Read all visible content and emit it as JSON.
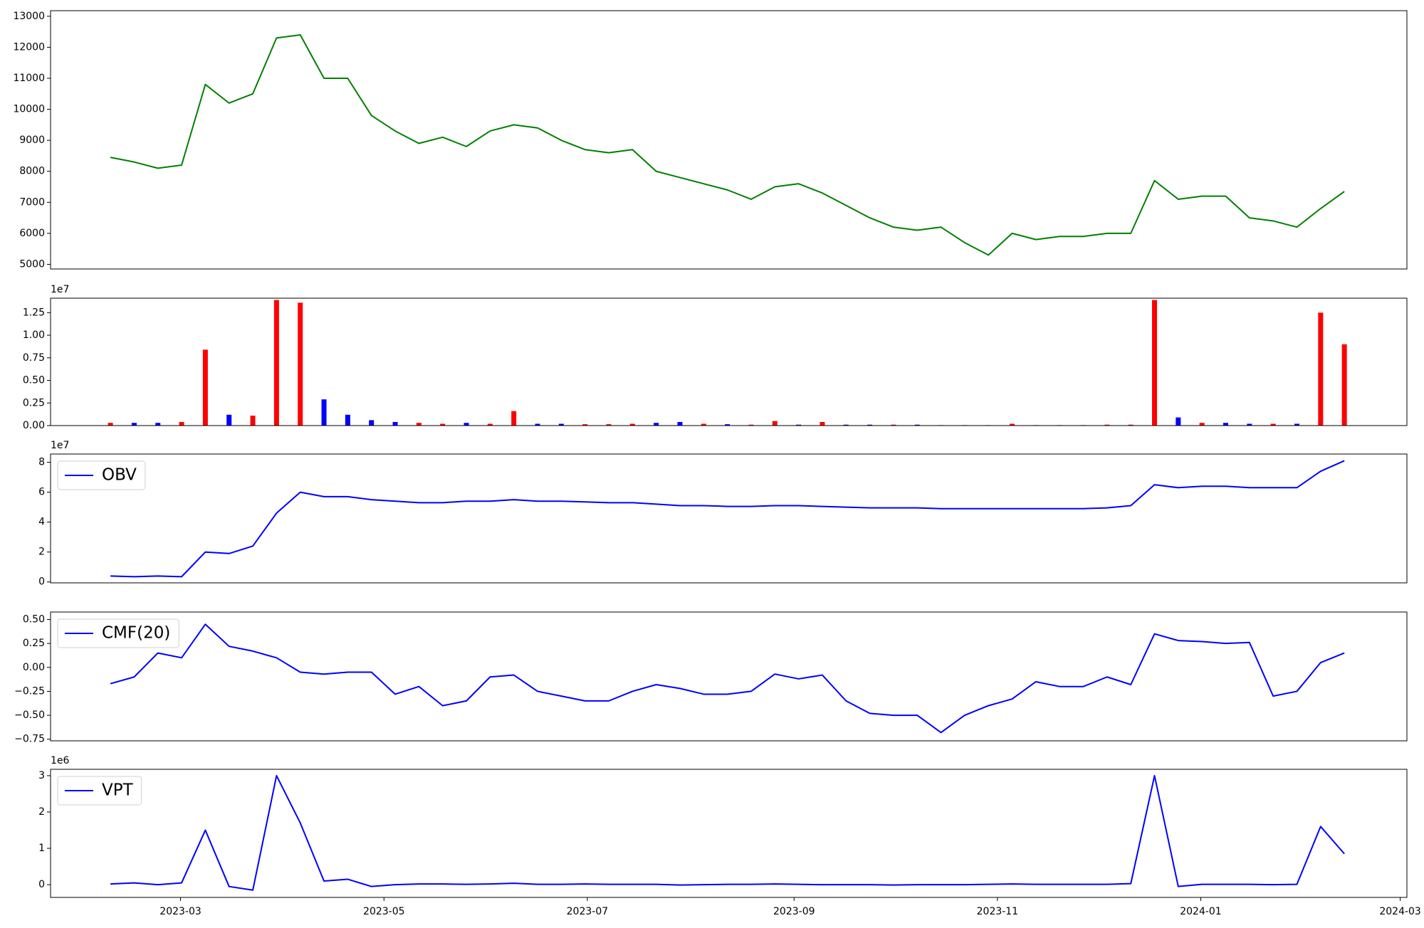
{
  "chart_data": [
    {
      "type": "line",
      "x": [
        2023.104,
        2023.1235,
        2023.143,
        2023.1625,
        2023.182,
        2023.2015,
        2023.221,
        2023.2405,
        2023.26,
        2023.2795,
        2023.299,
        2023.3185,
        2023.338,
        2023.3575,
        2023.377,
        2023.3965,
        2023.416,
        2023.4355,
        2023.455,
        2023.4745,
        2023.494,
        2023.5135,
        2023.533,
        2023.5525,
        2023.572,
        2023.5915,
        2023.611,
        2023.6305,
        2023.65,
        2023.6695,
        2023.689,
        2023.7085,
        2023.728,
        2023.7475,
        2023.767,
        2023.7865,
        2023.806,
        2023.8255,
        2023.845,
        2023.8645,
        2023.884,
        2023.9035,
        2023.923,
        2023.9425,
        2023.962,
        2023.9815,
        2024.001,
        2024.0205,
        2024.04,
        2024.0595,
        2024.079,
        2024.0985,
        2024.118
      ],
      "values": [
        8450,
        8300,
        8100,
        8200,
        10800,
        10200,
        10500,
        12300,
        12400,
        11000,
        11000,
        9800,
        9300,
        8900,
        9100,
        8800,
        9300,
        9500,
        9400,
        9000,
        8700,
        8600,
        8700,
        8000,
        7800,
        7600,
        7400,
        7100,
        7500,
        7600,
        7300,
        6900,
        6500,
        6200,
        6100,
        6200,
        5700,
        5300,
        6000,
        5800,
        5900,
        5900,
        6000,
        6000,
        7700,
        7100,
        7200,
        7200,
        6500,
        6400,
        6200,
        6800,
        7350
      ],
      "color": "#008000",
      "xlim": [
        2023.0548,
        2024.1694
      ],
      "ylim": [
        4850,
        13180
      ],
      "yticks": [
        5000,
        6000,
        7000,
        8000,
        9000,
        10000,
        11000,
        12000,
        13000
      ]
    },
    {
      "type": "bar",
      "x": [
        2023.104,
        2023.1235,
        2023.143,
        2023.1625,
        2023.182,
        2023.2015,
        2023.221,
        2023.2405,
        2023.26,
        2023.2795,
        2023.299,
        2023.3185,
        2023.338,
        2023.3575,
        2023.377,
        2023.3965,
        2023.416,
        2023.4355,
        2023.455,
        2023.4745,
        2023.494,
        2023.5135,
        2023.533,
        2023.5525,
        2023.572,
        2023.5915,
        2023.611,
        2023.6305,
        2023.65,
        2023.6695,
        2023.689,
        2023.7085,
        2023.728,
        2023.7475,
        2023.767,
        2023.7865,
        2023.806,
        2023.8255,
        2023.845,
        2023.8645,
        2023.884,
        2023.9035,
        2023.923,
        2023.9425,
        2023.962,
        2023.9815,
        2024.001,
        2024.0205,
        2024.04,
        2024.0595,
        2024.079,
        2024.0985,
        2024.118
      ],
      "values": [
        300000,
        300000,
        300000,
        400000,
        8400000,
        1200000,
        1100000,
        13900000,
        13600000,
        2900000,
        1200000,
        600000,
        400000,
        300000,
        200000,
        300000,
        200000,
        1600000,
        200000,
        200000,
        150000,
        150000,
        200000,
        300000,
        400000,
        200000,
        150000,
        100000,
        500000,
        100000,
        400000,
        100000,
        100000,
        100000,
        100000,
        50000,
        50000,
        50000,
        200000,
        50000,
        50000,
        50000,
        100000,
        100000,
        13900000,
        900000,
        300000,
        300000,
        200000,
        200000,
        200000,
        12500000,
        9000000
      ],
      "colors": [
        "red",
        "blue",
        "blue",
        "red",
        "red",
        "blue",
        "red",
        "red",
        "red",
        "blue",
        "blue",
        "blue",
        "blue",
        "red",
        "red",
        "blue",
        "red",
        "red",
        "blue",
        "blue",
        "red",
        "red",
        "red",
        "blue",
        "blue",
        "red",
        "blue",
        "red",
        "red",
        "blue",
        "red",
        "blue",
        "blue",
        "red",
        "blue",
        "red",
        "blue",
        "red",
        "red",
        "blue",
        "blue",
        "blue",
        "red",
        "red",
        "red",
        "blue",
        "red",
        "blue",
        "blue",
        "red",
        "blue",
        "red",
        "red"
      ],
      "xlim": [
        2023.0548,
        2024.1694
      ],
      "ylim": [
        0,
        14100000
      ],
      "yticks": [
        {
          "value": 0,
          "label": "0.00"
        },
        {
          "value": 2500000,
          "label": "0.25"
        },
        {
          "value": 5000000,
          "label": "0.50"
        },
        {
          "value": 7500000,
          "label": "0.75"
        },
        {
          "value": 10000000,
          "label": "1.00"
        },
        {
          "value": 12500000,
          "label": "1.25"
        }
      ],
      "offset_label": "1e7"
    },
    {
      "type": "line",
      "x": [
        2023.104,
        2023.1235,
        2023.143,
        2023.1625,
        2023.182,
        2023.2015,
        2023.221,
        2023.2405,
        2023.26,
        2023.2795,
        2023.299,
        2023.3185,
        2023.338,
        2023.3575,
        2023.377,
        2023.3965,
        2023.416,
        2023.4355,
        2023.455,
        2023.4745,
        2023.494,
        2023.5135,
        2023.533,
        2023.5525,
        2023.572,
        2023.5915,
        2023.611,
        2023.6305,
        2023.65,
        2023.6695,
        2023.689,
        2023.7085,
        2023.728,
        2023.7475,
        2023.767,
        2023.7865,
        2023.806,
        2023.8255,
        2023.845,
        2023.8645,
        2023.884,
        2023.9035,
        2023.923,
        2023.9425,
        2023.962,
        2023.9815,
        2024.001,
        2024.0205,
        2024.04,
        2024.0595,
        2024.079,
        2024.0985,
        2024.118
      ],
      "series": [
        {
          "name": "OBV",
          "color": "blue",
          "values": [
            4000000,
            3500000,
            4000000,
            3500000,
            20000000,
            19000000,
            24000000,
            46000000,
            60000000,
            57000000,
            57000000,
            55000000,
            54000000,
            53000000,
            53000000,
            54000000,
            54000000,
            55000000,
            54000000,
            54000000,
            53500000,
            53000000,
            53000000,
            52000000,
            51000000,
            51000000,
            50500000,
            50500000,
            51000000,
            51000000,
            50500000,
            50000000,
            49500000,
            49500000,
            49500000,
            49000000,
            49000000,
            49000000,
            49000000,
            49000000,
            49000000,
            49000000,
            49500000,
            51000000,
            65000000,
            63000000,
            64000000,
            64000000,
            63000000,
            63000000,
            63000000,
            74000000,
            81000000
          ]
        }
      ],
      "legend": "upper left",
      "xlim": [
        2023.0548,
        2024.1694
      ],
      "ylim": [
        -600000,
        85500000
      ],
      "yticks": [
        0,
        {
          "value": 20000000,
          "label": "2"
        },
        {
          "value": 40000000,
          "label": "4"
        },
        {
          "value": 60000000,
          "label": "6"
        },
        {
          "value": 80000000,
          "label": "8"
        }
      ],
      "offset_label": "1e7"
    },
    {
      "type": "line",
      "x": [
        2023.104,
        2023.1235,
        2023.143,
        2023.1625,
        2023.182,
        2023.2015,
        2023.221,
        2023.2405,
        2023.26,
        2023.2795,
        2023.299,
        2023.3185,
        2023.338,
        2023.3575,
        2023.377,
        2023.3965,
        2023.416,
        2023.4355,
        2023.455,
        2023.4745,
        2023.494,
        2023.5135,
        2023.533,
        2023.5525,
        2023.572,
        2023.5915,
        2023.611,
        2023.6305,
        2023.65,
        2023.6695,
        2023.689,
        2023.7085,
        2023.728,
        2023.7475,
        2023.767,
        2023.7865,
        2023.806,
        2023.8255,
        2023.845,
        2023.8645,
        2023.884,
        2023.9035,
        2023.923,
        2023.9425,
        2023.962,
        2023.9815,
        2024.001,
        2024.0205,
        2024.04,
        2024.0595,
        2024.079,
        2024.0985,
        2024.118
      ],
      "series": [
        {
          "name": "CMF(20)",
          "color": "blue",
          "values": [
            -0.17,
            -0.1,
            0.15,
            0.1,
            0.45,
            0.22,
            0.17,
            0.1,
            -0.05,
            -0.07,
            -0.05,
            -0.05,
            -0.28,
            -0.2,
            -0.4,
            -0.35,
            -0.1,
            -0.08,
            -0.25,
            -0.3,
            -0.35,
            -0.35,
            -0.25,
            -0.18,
            -0.22,
            -0.28,
            -0.28,
            -0.25,
            -0.07,
            -0.12,
            -0.08,
            -0.35,
            -0.48,
            -0.5,
            -0.5,
            -0.68,
            -0.5,
            -0.4,
            -0.33,
            -0.15,
            -0.2,
            -0.2,
            -0.1,
            -0.18,
            0.35,
            0.28,
            0.27,
            0.25,
            0.26,
            -0.3,
            -0.25,
            0.05,
            0.15
          ]
        }
      ],
      "legend": "upper left",
      "xlim": [
        2023.0548,
        2024.1694
      ],
      "ylim": [
        -0.767,
        0.578
      ],
      "yticks": [
        {
          "value": -0.75,
          "label": "−0.75"
        },
        {
          "value": -0.5,
          "label": "−0.50"
        },
        {
          "value": -0.25,
          "label": "−0.25"
        },
        {
          "value": 0,
          "label": "0.00"
        },
        0.25,
        {
          "value": 0.5,
          "label": "0.50"
        }
      ]
    },
    {
      "type": "line",
      "x": [
        2023.104,
        2023.1235,
        2023.143,
        2023.1625,
        2023.182,
        2023.2015,
        2023.221,
        2023.2405,
        2023.26,
        2023.2795,
        2023.299,
        2023.3185,
        2023.338,
        2023.3575,
        2023.377,
        2023.3965,
        2023.416,
        2023.4355,
        2023.455,
        2023.4745,
        2023.494,
        2023.5135,
        2023.533,
        2023.5525,
        2023.572,
        2023.5915,
        2023.611,
        2023.6305,
        2023.65,
        2023.6695,
        2023.689,
        2023.7085,
        2023.728,
        2023.7475,
        2023.767,
        2023.7865,
        2023.806,
        2023.8255,
        2023.845,
        2023.8645,
        2023.884,
        2023.9035,
        2023.923,
        2023.9425,
        2023.962,
        2023.9815,
        2024.001,
        2024.0205,
        2024.04,
        2024.0595,
        2024.079,
        2024.0985,
        2024.118
      ],
      "series": [
        {
          "name": "VPT",
          "color": "blue",
          "values": [
            20000,
            50000,
            0,
            50000,
            1500000,
            -50000,
            -150000,
            3000000,
            1700000,
            100000,
            150000,
            -50000,
            0,
            20000,
            20000,
            10000,
            20000,
            40000,
            10000,
            10000,
            20000,
            10000,
            10000,
            10000,
            -10000,
            0,
            10000,
            10000,
            20000,
            10000,
            0,
            0,
            0,
            -10000,
            0,
            0,
            0,
            10000,
            20000,
            10000,
            10000,
            10000,
            10000,
            30000,
            3000000,
            -50000,
            10000,
            10000,
            10000,
            0,
            10000,
            1600000,
            850000
          ]
        }
      ],
      "legend": "upper left",
      "xlim": [
        2023.0548,
        2024.1694
      ],
      "ylim": [
        -350000,
        3175000
      ],
      "yticks": [
        0,
        {
          "value": 1000000,
          "label": "1"
        },
        {
          "value": 2000000,
          "label": "2"
        },
        {
          "value": 3000000,
          "label": "3"
        }
      ],
      "offset_label": "1e6",
      "xticks": [
        {
          "value": 2023.1616,
          "label": "2023-03"
        },
        {
          "value": 2023.3288,
          "label": "2023-05"
        },
        {
          "value": 2023.4959,
          "label": "2023-07"
        },
        {
          "value": 2023.6658,
          "label": "2023-09"
        },
        {
          "value": 2023.8329,
          "label": "2023-11"
        },
        {
          "value": 2024.0,
          "label": "2024-01"
        },
        {
          "value": 2024.1639,
          "label": "2024-03"
        }
      ]
    }
  ]
}
